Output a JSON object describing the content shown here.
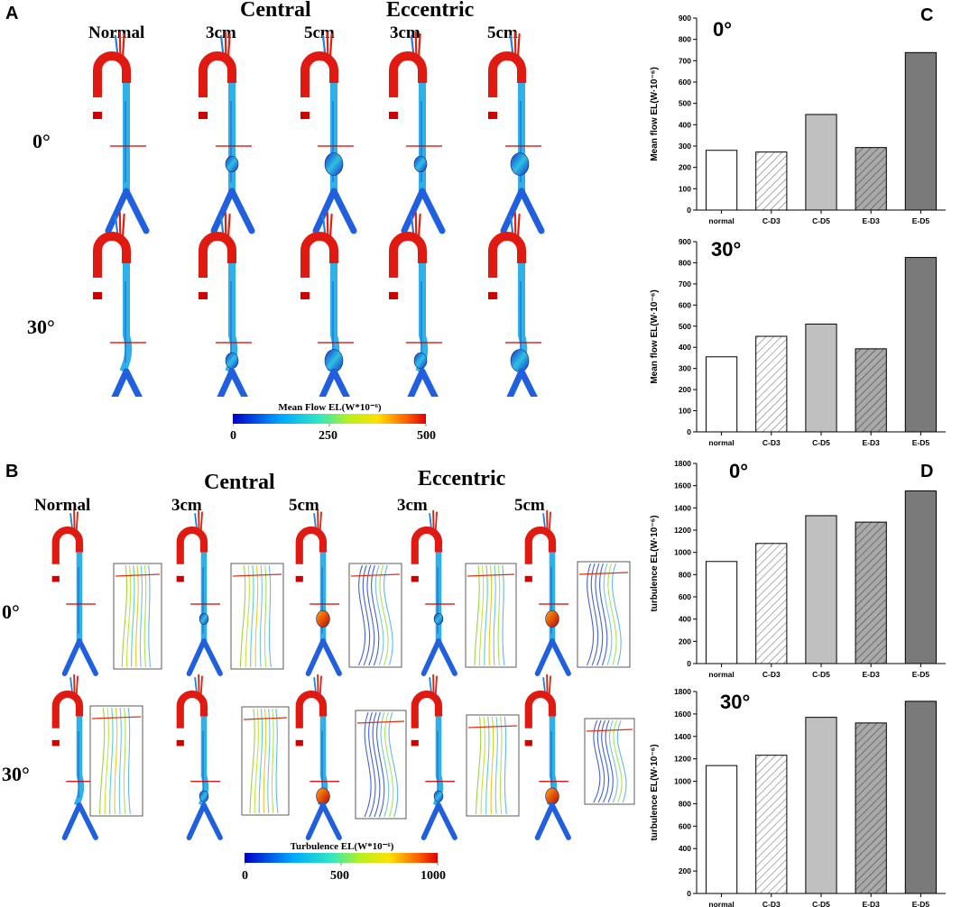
{
  "panels": {
    "A": "A",
    "B": "B",
    "C": "C",
    "D": "D"
  },
  "panelA": {
    "group_central": "Central",
    "group_eccentric": "Eccentric",
    "columns": [
      "Normal",
      "3cm",
      "5cm",
      "3cm",
      "5cm"
    ],
    "rows": [
      "0°",
      "30°"
    ],
    "colorbar": {
      "title": "Mean Flow EL(W*10⁻⁶)",
      "ticks": [
        "0",
        "250",
        "500"
      ]
    }
  },
  "panelB": {
    "group_central": "Central",
    "group_eccentric": "Eccentric",
    "columns": [
      "Normal",
      "3cm",
      "5cm",
      "3cm",
      "5cm"
    ],
    "rows": [
      "0°",
      "30°"
    ],
    "colorbar": {
      "title": "Turbulence EL(W*10⁻⁶)",
      "ticks": [
        "0",
        "500",
        "1000"
      ]
    }
  },
  "colors": {
    "normal": "#ffffff",
    "c_d3": "#ffffff",
    "c_d5": "#c0c0c0",
    "e_d3": "#a9a9a9",
    "e_d5": "#7a7a7a"
  },
  "chart_data": [
    {
      "id": "C0",
      "type": "bar",
      "title": "0°",
      "ylabel": "Mean flow EL(W·10⁻⁶)",
      "categories": [
        "normal",
        "C-D3",
        "C-D5",
        "E-D3",
        "E-D5"
      ],
      "values": [
        280,
        272,
        448,
        293,
        738
      ],
      "ylim": [
        0,
        900
      ],
      "yticks": [
        "0",
        "100",
        "200",
        "300",
        "400",
        "500",
        "600",
        "700",
        "800",
        "900"
      ]
    },
    {
      "id": "C30",
      "type": "bar",
      "title": "30°",
      "ylabel": "Mean flow EL(W·10⁻⁶)",
      "categories": [
        "normal",
        "C-D3",
        "C-D5",
        "E-D3",
        "E-D5"
      ],
      "values": [
        355,
        452,
        510,
        393,
        825
      ],
      "ylim": [
        0,
        900
      ],
      "yticks": [
        "0",
        "100",
        "200",
        "300",
        "400",
        "500",
        "600",
        "700",
        "800",
        "900"
      ]
    },
    {
      "id": "D0",
      "type": "bar",
      "title": "0°",
      "ylabel": "turbulence EL(W·10⁻⁶)",
      "categories": [
        "normal",
        "C-D3",
        "C-D5",
        "E-D3",
        "E-D5"
      ],
      "values": [
        918,
        1080,
        1330,
        1272,
        1553
      ],
      "ylim": [
        0,
        1800
      ],
      "yticks": [
        "0",
        "200",
        "400",
        "600",
        "800",
        "1000",
        "1200",
        "1400",
        "1600",
        "1800"
      ]
    },
    {
      "id": "D30",
      "type": "bar",
      "title": "30°",
      "ylabel": "turbulence EL(W·10⁻⁶)",
      "categories": [
        "normal",
        "C-D3",
        "C-D5",
        "E-D3",
        "E-D5"
      ],
      "values": [
        1140,
        1232,
        1570,
        1520,
        1713
      ],
      "ylim": [
        0,
        1800
      ],
      "yticks": [
        "0",
        "200",
        "400",
        "600",
        "800",
        "1000",
        "1200",
        "1400",
        "1600",
        "1800"
      ]
    }
  ]
}
